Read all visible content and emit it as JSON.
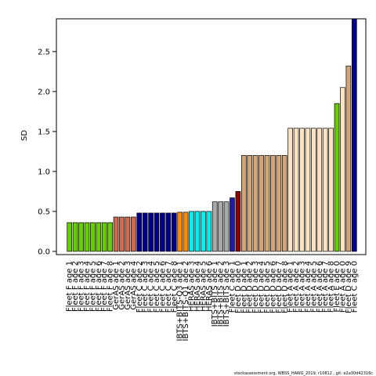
{
  "chart_data": {
    "type": "bar",
    "y_label": "SD",
    "footer": "stockassessment.org, WBSS_HAWG_2019, r10812 , git: e2a30d42316c",
    "categories": [
      "Fleet F age 1",
      "Fleet F age 2",
      "Fleet F age 3",
      "Fleet F age 4",
      "Fleet F age 5",
      "Fleet F age 6",
      "Fleet F age 7",
      "Fleet F age 8",
      "GerAS age 1",
      "GerAS age 2",
      "GerAS age 3",
      "GerAS age 4",
      "Fleet C age 2",
      "Fleet C age 3",
      "Fleet C age 4",
      "Fleet C age 5",
      "Fleet C age 6",
      "Fleet C age 7",
      "Fleet C age 8",
      "IBTS+BITS-Q3 age 1",
      "IBTS+BITS-Q1 age 2",
      "HERAS age 3",
      "HERAS age 4",
      "HERAS age 5",
      "HERAS age 6",
      "IBTS+BITS age 1",
      "IBTS+BITS age 2",
      "IBTS+BITS age 3",
      "Fleet C age 1",
      "Fleet D age 0",
      "Fleet D age 1",
      "Fleet D age 2",
      "Fleet D age 3",
      "Fleet D age 4",
      "Fleet D age 5",
      "Fleet D age 6",
      "Fleet D age 7",
      "Fleet D age 8",
      "Fleet A age 1",
      "Fleet A age 2",
      "Fleet A age 3",
      "Fleet A age 4",
      "Fleet A age 5",
      "Fleet A age 6",
      "Fleet A age 7",
      "Fleet A age 8",
      "Fleet E age 0",
      "Fleet A age 0",
      "Fleet D age 9",
      "Fleet C age 0"
    ],
    "values": [
      0.36,
      0.36,
      0.36,
      0.36,
      0.36,
      0.36,
      0.36,
      0.36,
      0.43,
      0.43,
      0.43,
      0.43,
      0.48,
      0.48,
      0.48,
      0.48,
      0.48,
      0.48,
      0.48,
      0.49,
      0.49,
      0.5,
      0.5,
      0.5,
      0.5,
      0.62,
      0.62,
      0.62,
      0.67,
      0.75,
      1.2,
      1.2,
      1.2,
      1.2,
      1.2,
      1.2,
      1.2,
      1.2,
      1.54,
      1.54,
      1.54,
      1.54,
      1.54,
      1.54,
      1.54,
      1.54,
      1.85,
      2.05,
      2.32,
      2.93
    ],
    "colors": [
      "#66cd00",
      "#66cd00",
      "#66cd00",
      "#66cd00",
      "#66cd00",
      "#66cd00",
      "#66cd00",
      "#66cd00",
      "#cd6a4f",
      "#cd6a4f",
      "#cd6a4f",
      "#cd6a4f",
      "#00008b",
      "#00008b",
      "#00008b",
      "#00008b",
      "#00008b",
      "#00008b",
      "#00008b",
      "#ff8c00",
      "#ff8c00",
      "#00eeee",
      "#00eeee",
      "#00eeee",
      "#00eeee",
      "#a9a9a9",
      "#a9a9a9",
      "#a9a9a9",
      "#1c1ca8",
      "#8b0000",
      "#d2a679",
      "#d2a679",
      "#d2a679",
      "#d2a679",
      "#d2a679",
      "#d2a679",
      "#d2a679",
      "#d2a679",
      "#ffe4c4",
      "#ffe4c4",
      "#ffe4c4",
      "#ffe4c4",
      "#ffe4c4",
      "#ffe4c4",
      "#ffe4c4",
      "#ffe4c4",
      "#66cd00",
      "#ffe4c4",
      "#d2a679",
      "#00008b"
    ],
    "ylim": [
      -0.04,
      2.91
    ],
    "yticks": [
      {
        "value": 0,
        "label": "0.0"
      },
      {
        "value": 0.5,
        "label": "0.5"
      },
      {
        "value": 1,
        "label": "1.0"
      },
      {
        "value": 1.5,
        "label": "1.5"
      },
      {
        "value": 2,
        "label": "2.0"
      },
      {
        "value": 2.5,
        "label": "2.5"
      }
    ]
  }
}
